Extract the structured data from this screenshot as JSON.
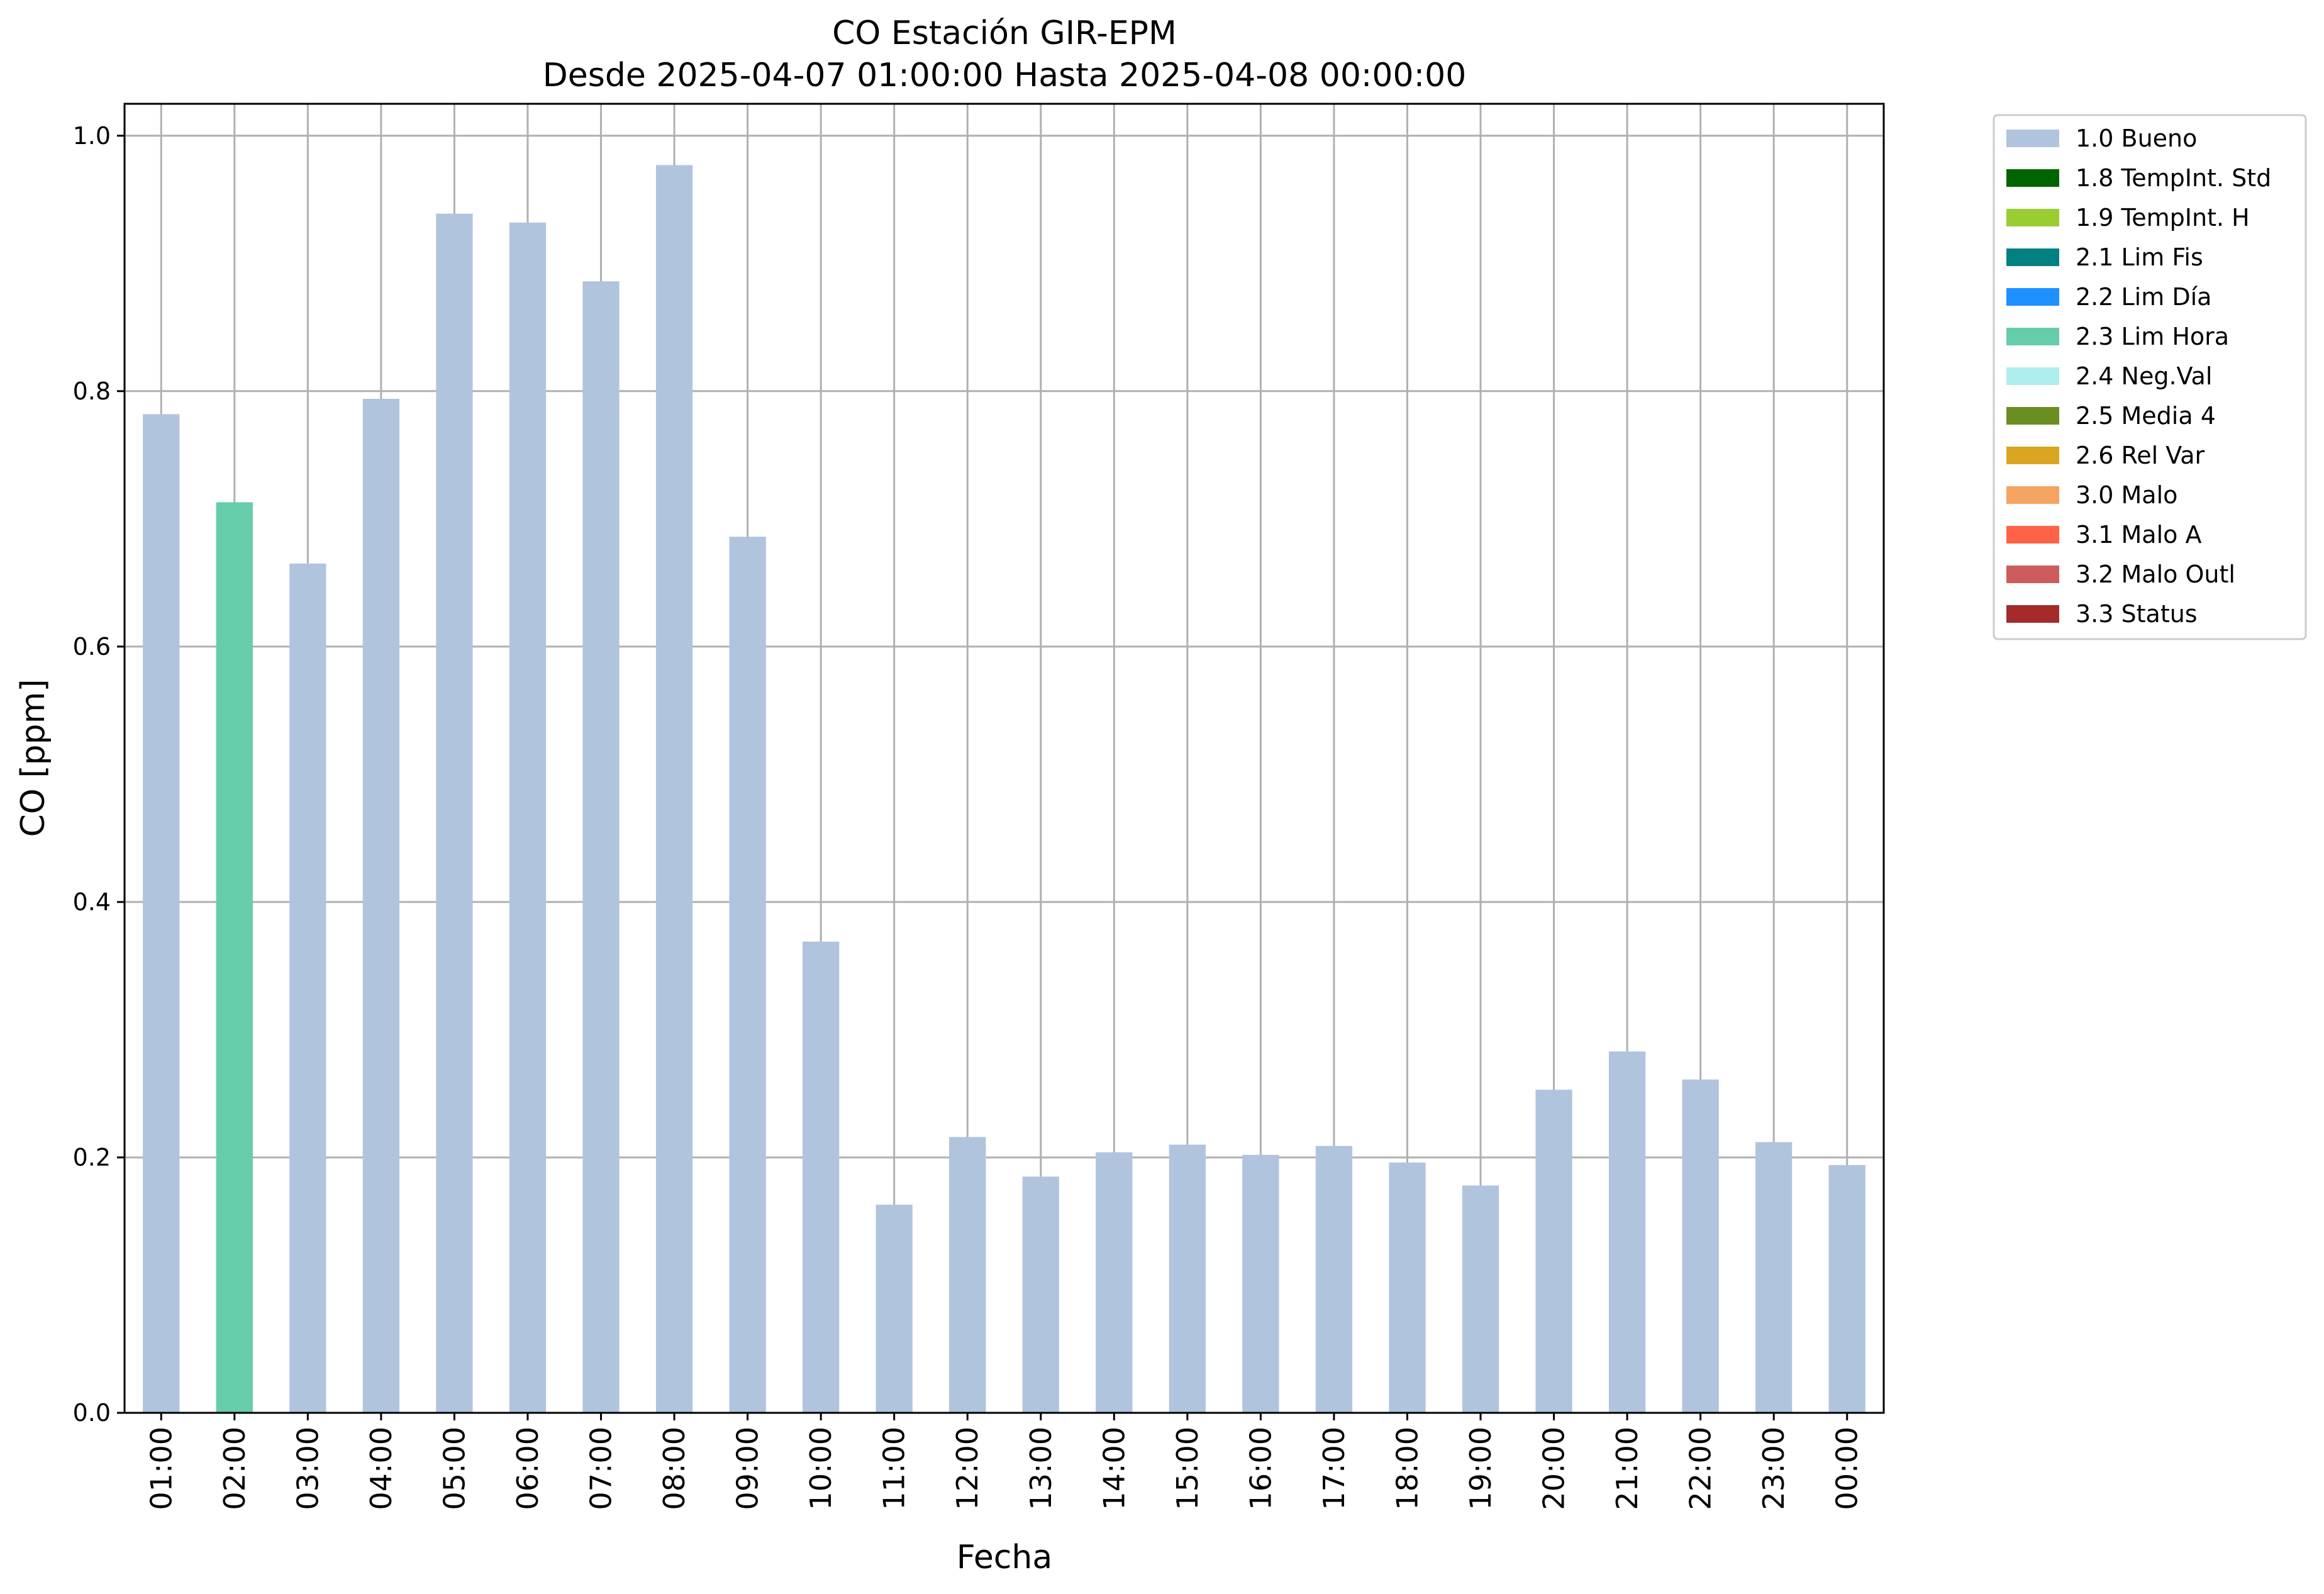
{
  "chart_data": {
    "type": "bar",
    "title": "CO Estación GIR-EPM",
    "subtitle": "Desde 2025-04-07 01:00:00 Hasta 2025-04-08 00:00:00",
    "xlabel": "Fecha",
    "ylabel": "CO [ppm]",
    "ylim": [
      0,
      1.025
    ],
    "yticks": [
      "0.0",
      "0.2",
      "0.4",
      "0.6",
      "0.8",
      "1.0"
    ],
    "grid": true,
    "legend_position": "outside-right",
    "categories": [
      "01:00",
      "02:00",
      "03:00",
      "04:00",
      "05:00",
      "06:00",
      "07:00",
      "08:00",
      "09:00",
      "10:00",
      "11:00",
      "12:00",
      "13:00",
      "14:00",
      "15:00",
      "16:00",
      "17:00",
      "18:00",
      "19:00",
      "20:00",
      "21:00",
      "22:00",
      "23:00",
      "00:00"
    ],
    "values": [
      0.782,
      0.713,
      0.665,
      0.794,
      0.939,
      0.932,
      0.886,
      0.977,
      0.686,
      0.369,
      0.163,
      0.216,
      0.185,
      0.204,
      0.21,
      0.202,
      0.209,
      0.196,
      0.178,
      0.253,
      0.283,
      0.261,
      0.212,
      0.194
    ],
    "bar_flags": [
      "1.0 Bueno",
      "2.3 Lim Hora",
      "1.0 Bueno",
      "1.0 Bueno",
      "1.0 Bueno",
      "1.0 Bueno",
      "1.0 Bueno",
      "1.0 Bueno",
      "1.0 Bueno",
      "1.0 Bueno",
      "1.0 Bueno",
      "1.0 Bueno",
      "1.0 Bueno",
      "1.0 Bueno",
      "1.0 Bueno",
      "1.0 Bueno",
      "1.0 Bueno",
      "1.0 Bueno",
      "1.0 Bueno",
      "1.0 Bueno",
      "1.0 Bueno",
      "1.0 Bueno",
      "1.0 Bueno",
      "1.0 Bueno"
    ],
    "legend": [
      {
        "label": "1.0 Bueno",
        "color": "#b0c4de"
      },
      {
        "label": "1.8 TempInt. Std",
        "color": "#006400"
      },
      {
        "label": "1.9 TempInt. H",
        "color": "#9acd32"
      },
      {
        "label": "2.1 Lim Fis",
        "color": "#008080"
      },
      {
        "label": "2.2 Lim Día",
        "color": "#1e90ff"
      },
      {
        "label": "2.3 Lim Hora",
        "color": "#66cdaa"
      },
      {
        "label": "2.4 Neg.Val",
        "color": "#afeeee"
      },
      {
        "label": "2.5 Media 4",
        "color": "#6b8e23"
      },
      {
        "label": "2.6 Rel Var",
        "color": "#daa520"
      },
      {
        "label": "3.0 Malo",
        "color": "#f4a460"
      },
      {
        "label": "3.1 Malo A",
        "color": "#ff6347"
      },
      {
        "label": "3.2 Malo Outl",
        "color": "#cd5c5c"
      },
      {
        "label": "3.3 Status",
        "color": "#a52a2a"
      }
    ]
  }
}
